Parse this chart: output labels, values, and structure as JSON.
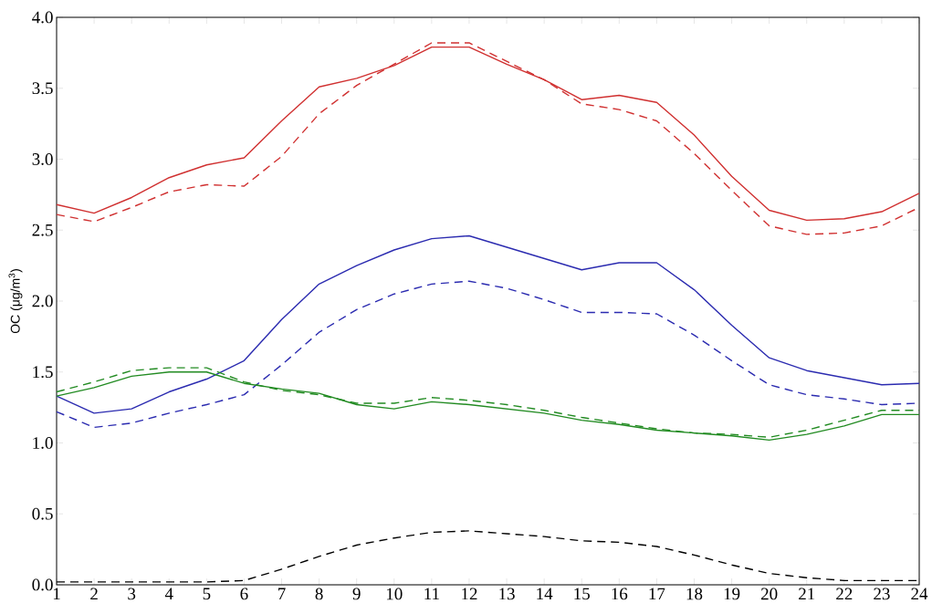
{
  "chart_data": {
    "type": "line",
    "ylabel": "OC (μg/m$^{3}$)",
    "x": [
      1,
      2,
      3,
      4,
      5,
      6,
      7,
      8,
      9,
      10,
      11,
      12,
      13,
      14,
      15,
      16,
      17,
      18,
      19,
      20,
      21,
      22,
      23,
      24
    ],
    "xlim": [
      1,
      24
    ],
    "xticks": [
      1,
      2,
      3,
      4,
      5,
      6,
      7,
      8,
      9,
      10,
      11,
      12,
      13,
      14,
      15,
      16,
      17,
      18,
      19,
      20,
      21,
      22,
      23,
      24
    ],
    "ylim": [
      0,
      4
    ],
    "yticks": [
      {
        "value": 0,
        "label": "0.0"
      },
      0.5,
      {
        "value": 1,
        "label": "1.0"
      },
      1.5,
      {
        "value": 2,
        "label": "2.0"
      },
      2.5,
      {
        "value": 3,
        "label": "3.0"
      },
      3.5,
      {
        "value": 4,
        "label": "4.0"
      }
    ],
    "marker": "none",
    "series": [
      {
        "color": "#d03030",
        "line_style": "solid",
        "values": [
          2.68,
          2.62,
          2.73,
          2.87,
          2.96,
          3.01,
          3.27,
          3.51,
          3.57,
          3.66,
          3.79,
          3.79,
          3.67,
          3.56,
          3.42,
          3.45,
          3.4,
          3.17,
          2.88,
          2.64,
          2.57,
          2.58,
          2.63,
          2.76
        ]
      },
      {
        "color": "#d03030",
        "line_style": "dashed",
        "values": [
          2.61,
          2.56,
          2.66,
          2.77,
          2.82,
          2.81,
          3.02,
          3.32,
          3.52,
          3.67,
          3.82,
          3.82,
          3.69,
          3.56,
          3.39,
          3.35,
          3.27,
          3.04,
          2.78,
          2.53,
          2.47,
          2.48,
          2.53,
          2.66
        ]
      },
      {
        "color": "#2b2bb0",
        "line_style": "solid",
        "values": [
          1.33,
          1.21,
          1.24,
          1.36,
          1.45,
          1.58,
          1.87,
          2.12,
          2.25,
          2.36,
          2.44,
          2.46,
          2.38,
          2.3,
          2.22,
          2.27,
          2.27,
          2.08,
          1.83,
          1.6,
          1.51,
          1.46,
          1.41,
          1.42
        ]
      },
      {
        "color": "#2b2bb0",
        "line_style": "dashed",
        "values": [
          1.22,
          1.11,
          1.14,
          1.21,
          1.27,
          1.34,
          1.55,
          1.78,
          1.94,
          2.05,
          2.12,
          2.14,
          2.09,
          2.01,
          1.92,
          1.92,
          1.91,
          1.76,
          1.58,
          1.41,
          1.34,
          1.31,
          1.27,
          1.28
        ]
      },
      {
        "color": "#228b22",
        "line_style": "solid",
        "values": [
          1.33,
          1.39,
          1.47,
          1.5,
          1.5,
          1.42,
          1.38,
          1.35,
          1.27,
          1.24,
          1.29,
          1.27,
          1.24,
          1.21,
          1.16,
          1.13,
          1.09,
          1.07,
          1.05,
          1.02,
          1.06,
          1.12,
          1.2,
          1.2
        ]
      },
      {
        "color": "#228b22",
        "line_style": "dashed",
        "values": [
          1.36,
          1.43,
          1.51,
          1.53,
          1.53,
          1.43,
          1.37,
          1.34,
          1.28,
          1.28,
          1.32,
          1.3,
          1.27,
          1.23,
          1.18,
          1.14,
          1.1,
          1.07,
          1.06,
          1.04,
          1.09,
          1.16,
          1.23,
          1.23
        ]
      },
      {
        "color": "#000000",
        "line_style": "dashed",
        "values": [
          0.02,
          0.02,
          0.02,
          0.02,
          0.02,
          0.03,
          0.11,
          0.2,
          0.28,
          0.33,
          0.37,
          0.38,
          0.36,
          0.34,
          0.31,
          0.3,
          0.27,
          0.21,
          0.14,
          0.08,
          0.05,
          0.03,
          0.03,
          0.03
        ]
      }
    ]
  }
}
